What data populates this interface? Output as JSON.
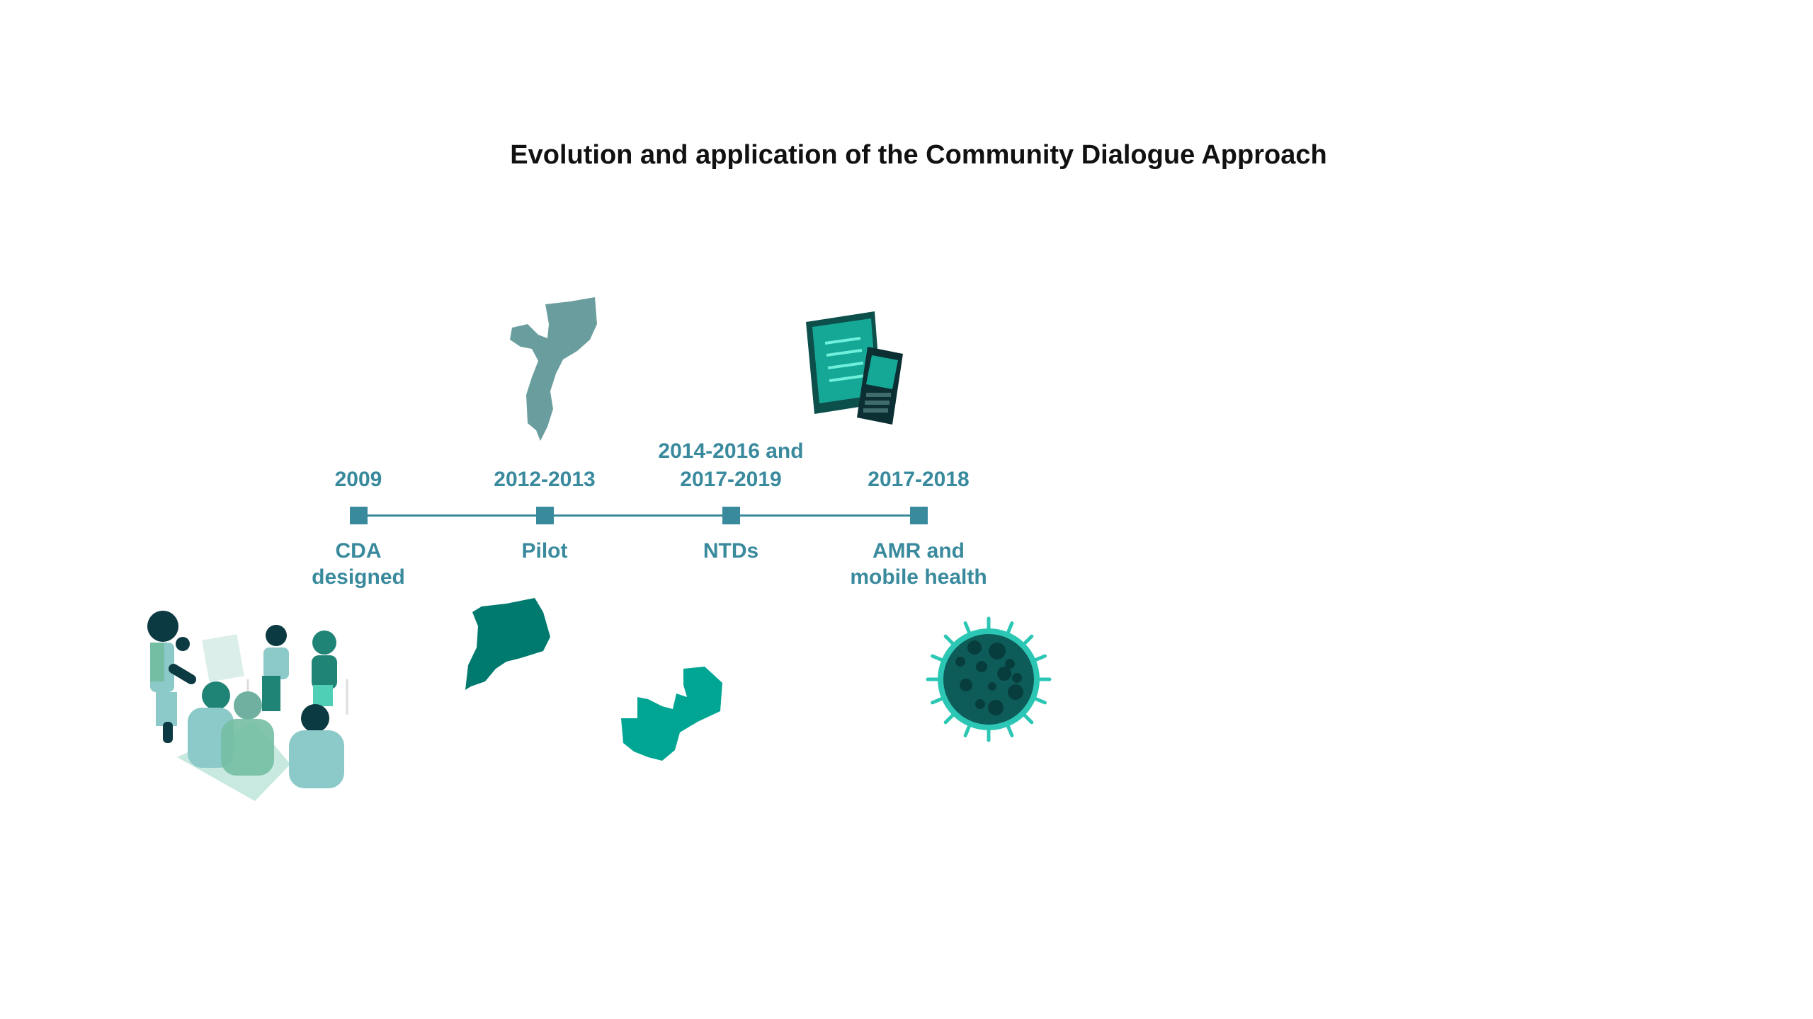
{
  "title": "Evolution and application of the Community Dialogue Approach",
  "colors": {
    "accent": "#3a8a9e",
    "dark_teal": "#00796b",
    "green_teal": "#00a693",
    "grey_teal": "#6a9e9e"
  },
  "timeline": [
    {
      "date_lines": [
        "2009"
      ],
      "label_lines": [
        "CDA",
        "designed"
      ],
      "icon": "community-group-illustration"
    },
    {
      "date_lines": [
        "2012-2013"
      ],
      "label_lines": [
        "Pilot"
      ],
      "icon": "mozambique-uganda-map-icon"
    },
    {
      "date_lines": [
        "2014-2016 and",
        "2017-2019"
      ],
      "label_lines": [
        "NTDs"
      ],
      "icon": "zambia-map-icon"
    },
    {
      "date_lines": [
        "2017-2018"
      ],
      "label_lines": [
        "AMR and",
        "mobile health"
      ],
      "icon": "devices-and-microbe-icon"
    }
  ]
}
